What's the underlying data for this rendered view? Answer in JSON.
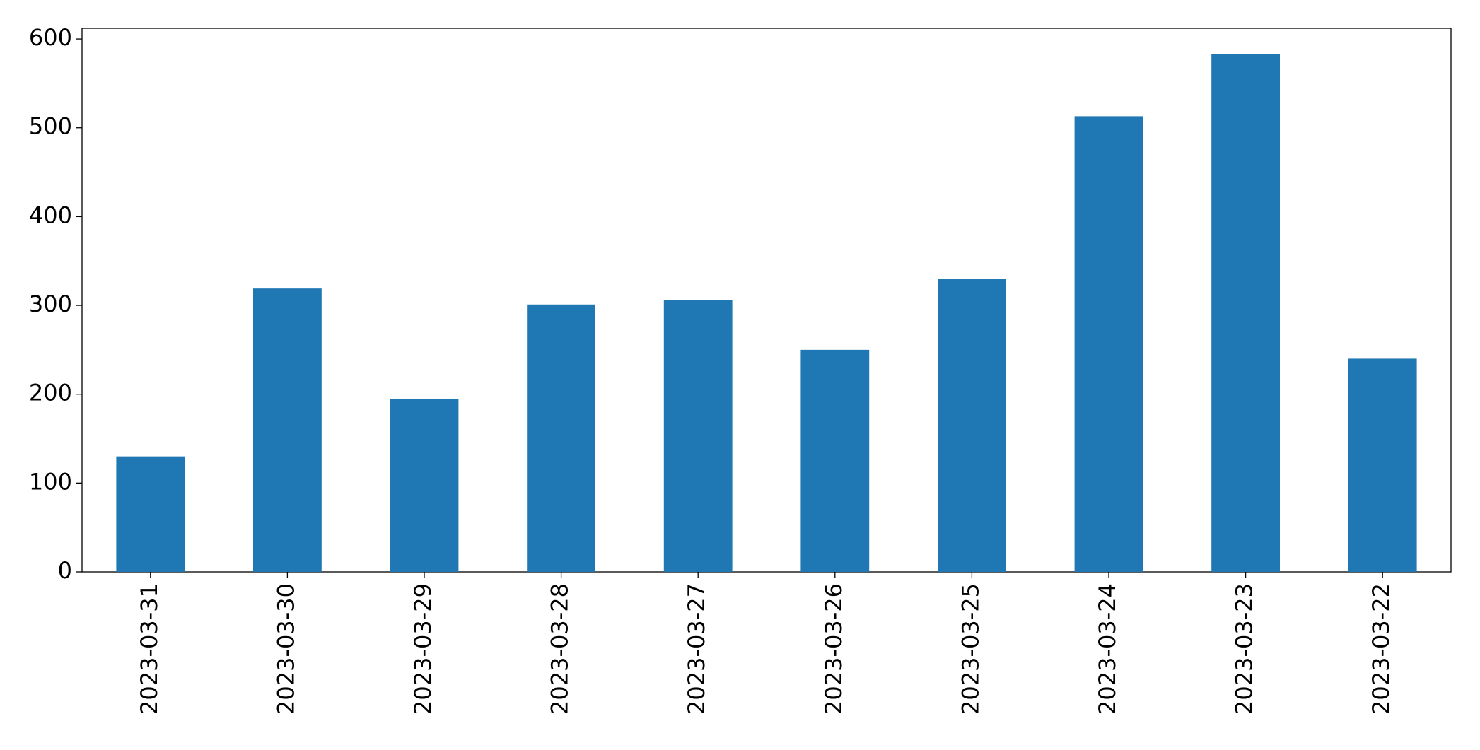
{
  "chart_data": {
    "type": "bar",
    "categories": [
      "2023-03-31",
      "2023-03-30",
      "2023-03-29",
      "2023-03-28",
      "2023-03-27",
      "2023-03-26",
      "2023-03-25",
      "2023-03-24",
      "2023-03-23",
      "2023-03-22"
    ],
    "values": [
      130,
      319,
      195,
      301,
      306,
      250,
      330,
      513,
      583,
      240
    ],
    "color": "#1f77b4",
    "ylim": [
      0,
      612
    ],
    "yticks": [
      0,
      100,
      200,
      300,
      400,
      500,
      600
    ],
    "grid": false
  }
}
